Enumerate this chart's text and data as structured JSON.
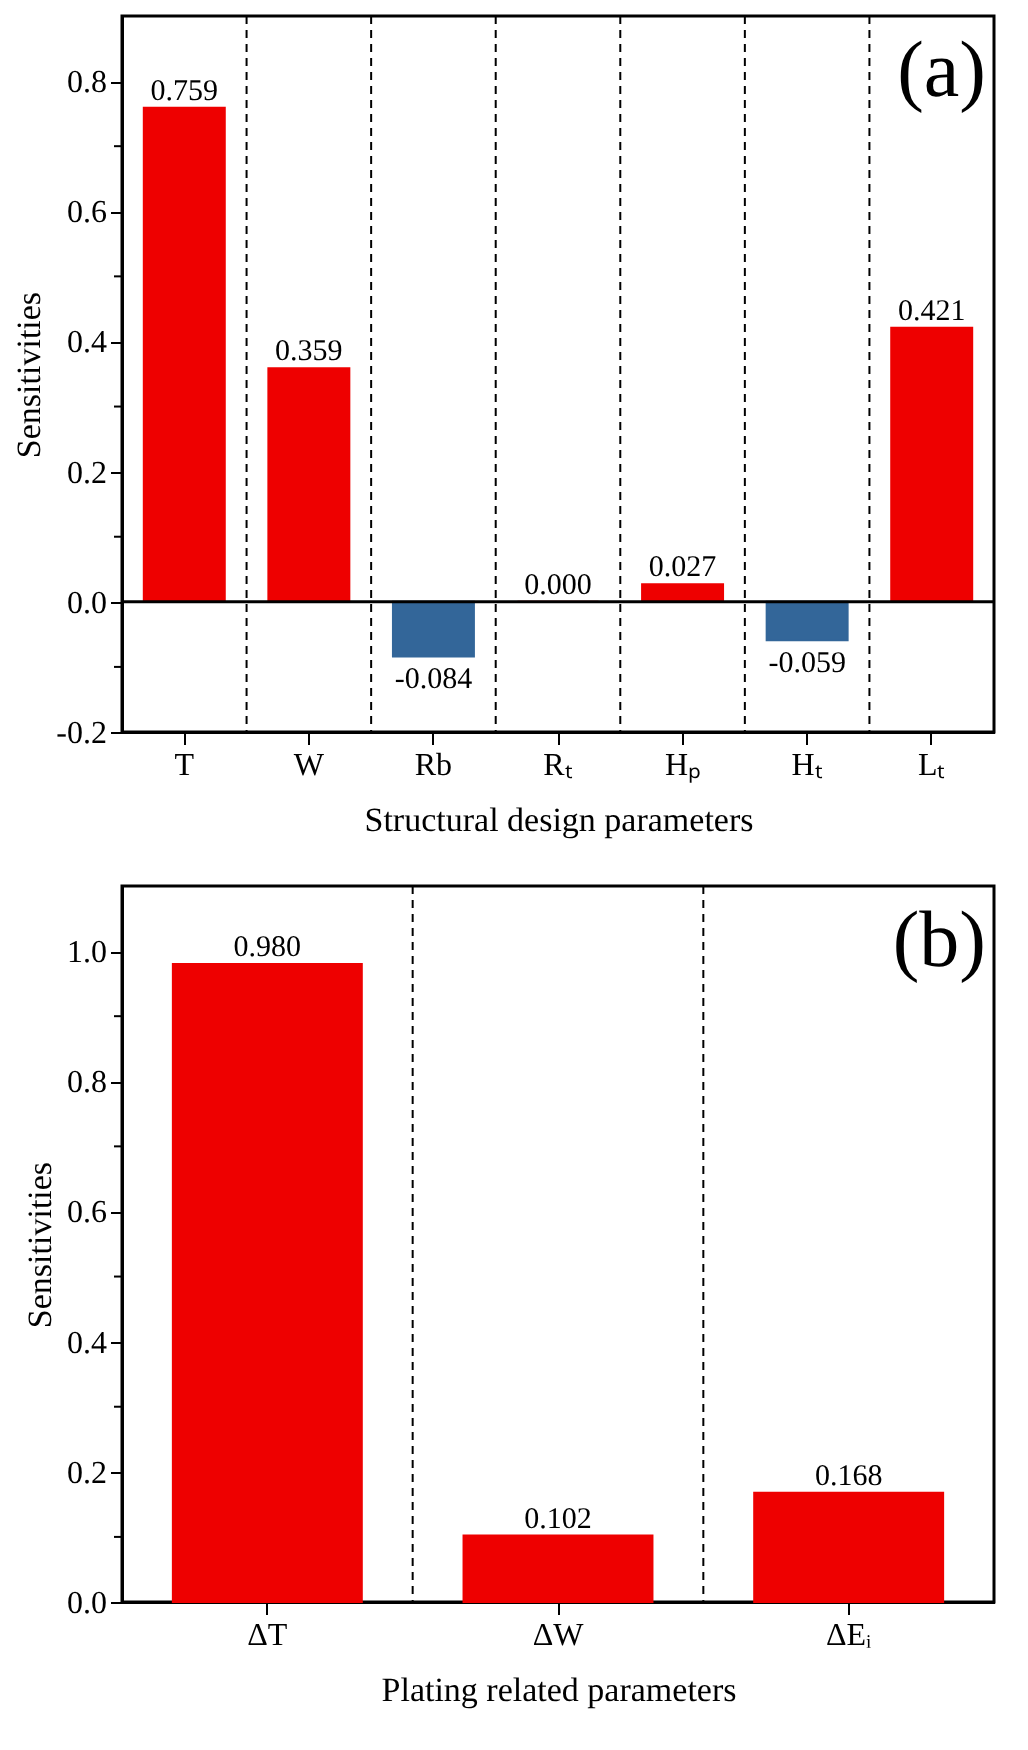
{
  "chart_data": [
    {
      "type": "bar",
      "xlabel": "Structural design parameters",
      "ylabel": "Sensitivities",
      "categories": [
        "T",
        "W",
        "Rb",
        "Rₜ",
        "Hₚ",
        "Hₜ",
        "Lₜ"
      ],
      "values": [
        0.759,
        0.359,
        -0.084,
        0.0,
        0.027,
        -0.059,
        0.421
      ],
      "colors": [
        "#ee0000",
        "#ee0000",
        "#336699",
        "#ee0000",
        "#ee0000",
        "#336699",
        "#ee0000"
      ],
      "value_labels": [
        "0.759",
        "0.359",
        "-0.084",
        "0.000",
        "0.027",
        "-0.059",
        "0.421"
      ],
      "ylim": [
        -0.2,
        0.9
      ],
      "yticks": [
        {
          "value": -0.2,
          "label": "-0.2"
        },
        {
          "value": -0.1,
          "label": null
        },
        {
          "value": 0,
          "label": "0.0"
        },
        {
          "value": 0.1,
          "label": null
        },
        {
          "value": 0.2,
          "label": "0.2"
        },
        {
          "value": 0.3,
          "label": null
        },
        {
          "value": 0.4,
          "label": "0.4"
        },
        {
          "value": 0.5,
          "label": null
        },
        {
          "value": 0.6,
          "label": "0.6"
        },
        {
          "value": 0.7,
          "label": null
        },
        {
          "value": 0.8,
          "label": "0.8"
        }
      ],
      "ref_lines": [
        {
          "axis": "y",
          "value": 0,
          "color": "#000000"
        }
      ],
      "grid": "x",
      "annotations": [
        "(a)"
      ]
    },
    {
      "type": "bar",
      "xlabel": "Plating related parameters",
      "ylabel": "Sensitivities",
      "categories": [
        "ΔT",
        "ΔW",
        "ΔEᵢ"
      ],
      "values": [
        0.98,
        0.102,
        0.168
      ],
      "colors": [
        "#ee0000",
        "#ee0000",
        "#ee0000"
      ],
      "value_labels": [
        "0.980",
        "0.102",
        "0.168"
      ],
      "ylim": [
        0,
        1.1
      ],
      "yticks": [
        {
          "value": 0,
          "label": "0.0"
        },
        {
          "value": 0.1,
          "label": null
        },
        {
          "value": 0.2,
          "label": "0.2"
        },
        {
          "value": 0.3,
          "label": null
        },
        {
          "value": 0.4,
          "label": "0.4"
        },
        {
          "value": 0.5,
          "label": null
        },
        {
          "value": 0.6,
          "label": "0.6"
        },
        {
          "value": 0.7,
          "label": null
        },
        {
          "value": 0.8,
          "label": "0.8"
        },
        {
          "value": 0.9,
          "label": null
        },
        {
          "value": 1.0,
          "label": "1.0"
        }
      ],
      "grid": "x",
      "annotations": [
        "(b)"
      ]
    }
  ]
}
